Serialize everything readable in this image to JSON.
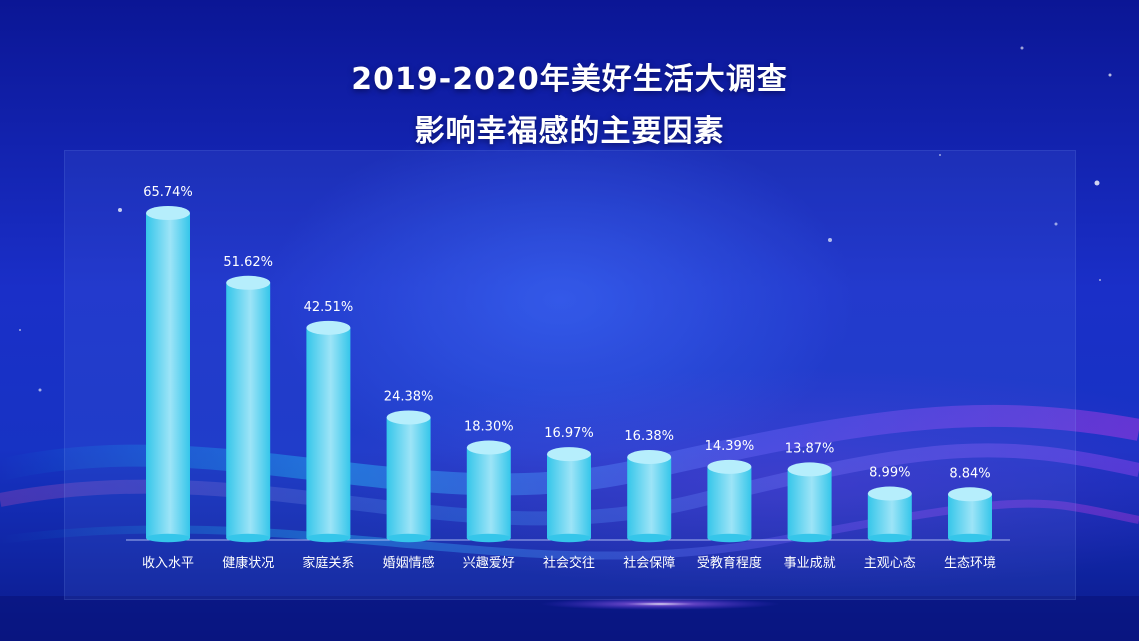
{
  "header": {
    "title": "2019-2020年美好生活大调查",
    "subtitle": "影响幸福感的主要因素"
  },
  "colors": {
    "bar_top": "#b6eefc",
    "bar_body_light": "#9de4f7",
    "bar_body_dark": "#35c6ea",
    "label": "#ffffff",
    "axis": "#c8d6ff"
  },
  "chart_data": {
    "type": "bar",
    "title": "影响幸福感的主要因素",
    "xlabel": "",
    "ylabel": "",
    "categories": [
      "收入水平",
      "健康状况",
      "家庭关系",
      "婚姻情感",
      "兴趣爱好",
      "社会交往",
      "社会保障",
      "受教育程度",
      "事业成就",
      "主观心态",
      "生态环境"
    ],
    "values": [
      65.74,
      51.62,
      42.51,
      24.38,
      18.3,
      16.97,
      16.38,
      14.39,
      13.87,
      8.99,
      8.84
    ],
    "value_labels": [
      "65.74%",
      "51.62%",
      "42.51%",
      "24.38%",
      "18.30%",
      "16.97%",
      "16.38%",
      "14.39%",
      "13.87%",
      "8.99%",
      "8.84%"
    ],
    "ylim": [
      0,
      65.74
    ],
    "grid": false,
    "legend": "none"
  }
}
